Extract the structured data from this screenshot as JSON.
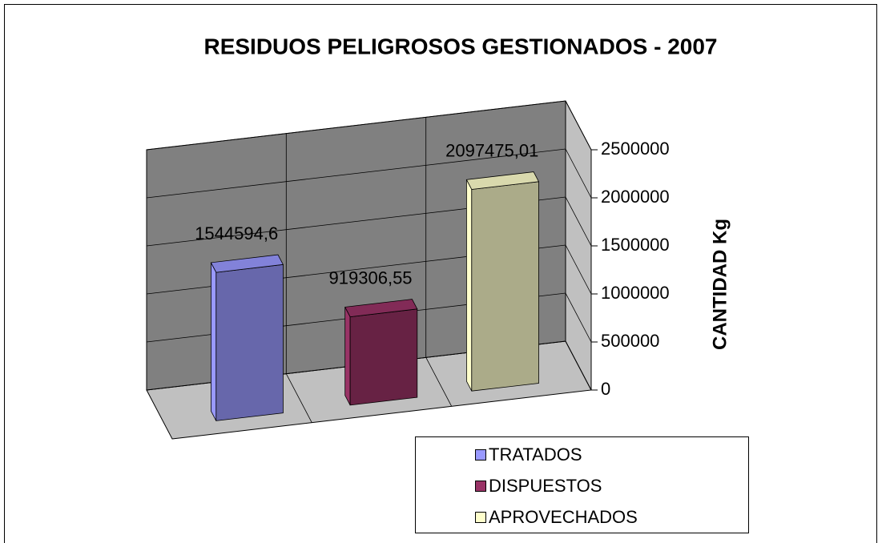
{
  "chart_data": {
    "type": "bar3d",
    "title": "RESIDUOS PELIGROSOS GESTIONADOS - 2007",
    "y_label": "CANTIDAD Kg",
    "categories": [
      null
    ],
    "series": [
      {
        "name": "TRATADOS",
        "color": "#9999ff",
        "values": [
          1544594.6
        ],
        "value_labels": [
          "1544594,6"
        ]
      },
      {
        "name": "DISPUESTOS",
        "color": "#993366",
        "values": [
          919306.55
        ],
        "value_labels": [
          "919306,55"
        ]
      },
      {
        "name": "APROVECHADOS",
        "color": "#ffffcc",
        "values": [
          2097475.01
        ],
        "value_labels": [
          "2097475,01"
        ]
      }
    ],
    "ylim": [
      0,
      2500000
    ],
    "yticks": [
      0,
      500000,
      1000000,
      1500000,
      2000000,
      2500000
    ],
    "grid": true,
    "legend": "bottom-right"
  }
}
